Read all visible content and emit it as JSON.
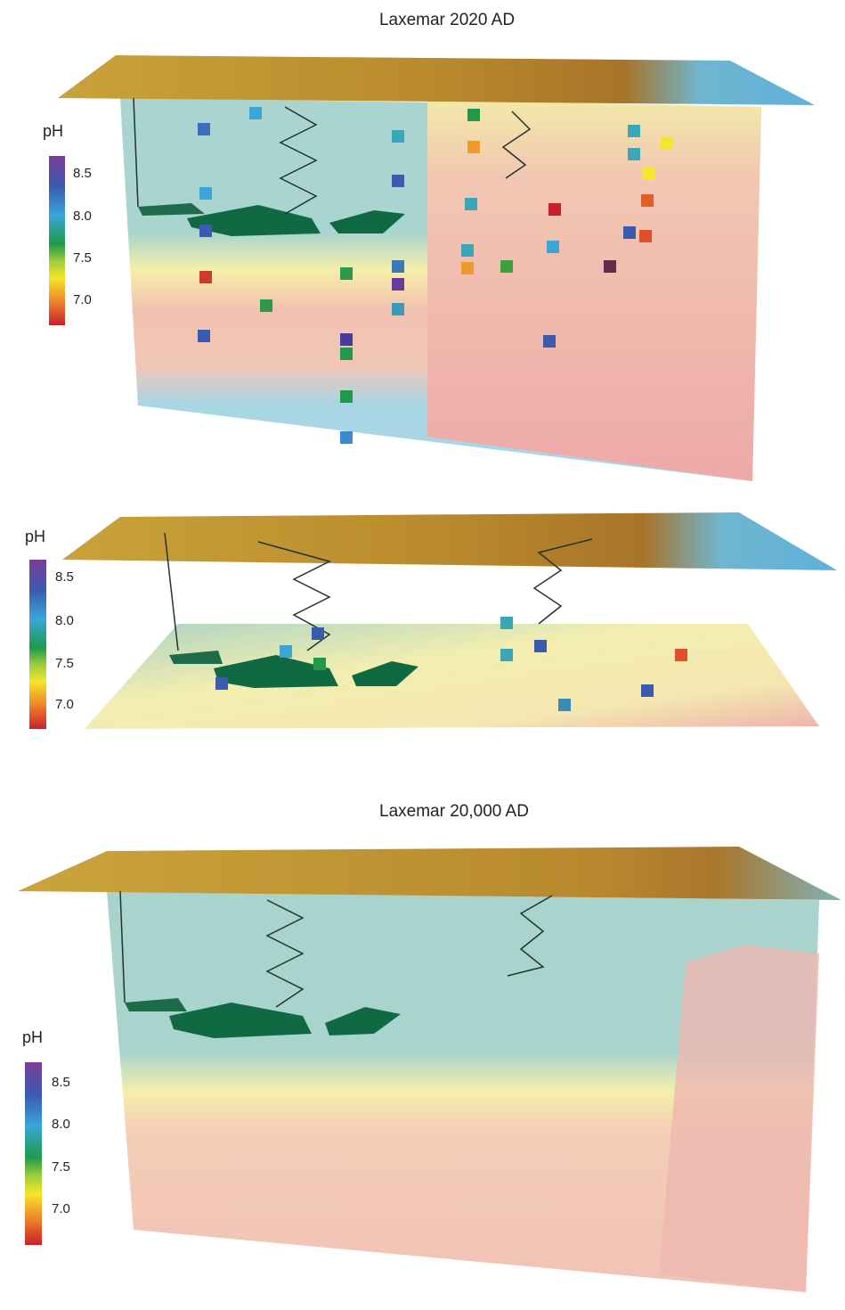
{
  "panels": [
    {
      "title": "Laxemar 2020 AD",
      "colorbar": {
        "label": "pH",
        "ticks": [
          "8.5",
          "8.0",
          "7.5",
          "7.0"
        ]
      }
    },
    {
      "colorbar": {
        "label": "pH",
        "ticks": [
          "8.5",
          "8.0",
          "7.5",
          "7.0"
        ]
      }
    },
    {
      "title": "Laxemar 20,000 AD",
      "colorbar": {
        "label": "pH",
        "ticks": [
          "8.5",
          "8.0",
          "7.5",
          "7.0"
        ]
      }
    }
  ]
}
